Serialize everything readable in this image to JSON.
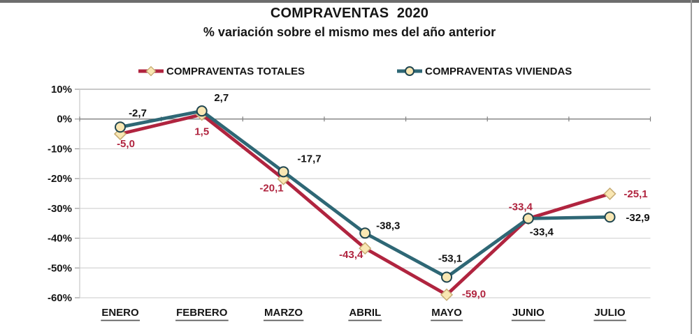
{
  "title": "COMPRAVENTAS  2020",
  "subtitle": "% variación sobre el mismo mes del año anterior",
  "frame": {
    "top_bar_color": "#6d6d6d",
    "right_border_color": "#9a9a9a"
  },
  "chart_data": {
    "type": "line",
    "title": "COMPRAVENTAS  2020",
    "subtitle": "% variación sobre el mismo mes del año anterior",
    "categories": [
      "ENERO",
      "FEBRERO",
      "MARZO",
      "ABRIL",
      "MAYO",
      "JUNIO",
      "JULIO"
    ],
    "series": [
      {
        "name": "COMPRAVENTAS TOTALES",
        "color": "#B0243F",
        "marker": "diamond",
        "marker_fill": "#F9E7B3",
        "marker_stroke": "#C6AC74",
        "label_color": "#B0243F",
        "values": [
          -5.0,
          1.5,
          -20.1,
          -43.4,
          -59.0,
          -33.4,
          -25.1
        ],
        "labels": [
          "-5,0",
          "1,5",
          "-20,1",
          "-43,4",
          "-59,0",
          "-33,4",
          "-25,1"
        ]
      },
      {
        "name": "COMPRAVENTAS VIVIENDAS",
        "color": "#2E6775",
        "marker": "circle",
        "marker_fill": "#F9E7B3",
        "marker_stroke": "#1F4550",
        "label_color": "#111111",
        "values": [
          -2.7,
          2.7,
          -17.7,
          -38.3,
          -53.1,
          -33.4,
          -32.9
        ],
        "labels": [
          "-2,7",
          "2,7",
          "-17,7",
          "-38,3",
          "-53,1",
          "-33,4",
          "-32,9"
        ]
      }
    ],
    "ytick_labels": [
      "10%",
      "0%",
      "-10%",
      "-20%",
      "-30%",
      "-40%",
      "-50%",
      "-60%"
    ],
    "ytick_values": [
      10,
      0,
      -10,
      -20,
      -30,
      -40,
      -50,
      -60
    ],
    "ylim": [
      -60,
      10
    ],
    "grid": true,
    "legend_position": "top",
    "grid_color": "#d4d4d4",
    "zero_axis_color": "#7f7f7f",
    "top_gridline_color": "#a9a9a9",
    "axis_tick_color": "#9a9a9a",
    "xlabel_color": "#151515",
    "xlabel_underline_color": "#595959"
  }
}
